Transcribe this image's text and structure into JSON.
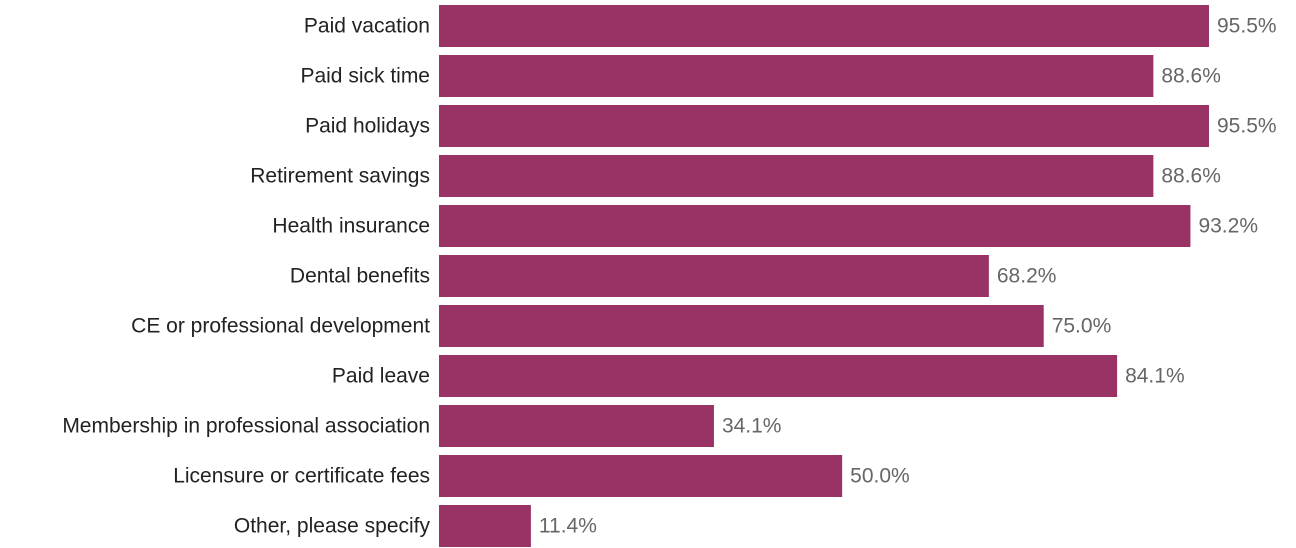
{
  "chart_data": {
    "type": "bar",
    "orientation": "horizontal",
    "categories": [
      "Paid vacation",
      "Paid sick time",
      "Paid holidays",
      "Retirement savings",
      "Health insurance",
      "Dental benefits",
      "CE or professional development",
      "Paid leave",
      "Membership in professional association",
      "Licensure or certificate fees",
      "Other, please specify"
    ],
    "values": [
      95.5,
      88.6,
      95.5,
      88.6,
      93.2,
      68.2,
      75.0,
      84.1,
      34.1,
      50.0,
      11.4
    ],
    "value_labels": [
      "95.5%",
      "88.6%",
      "95.5%",
      "88.6%",
      "93.2%",
      "68.2%",
      "75.0%",
      "84.1%",
      "34.1%",
      "50.0%",
      "11.4%"
    ],
    "xlim": [
      0,
      100
    ],
    "grid": false,
    "legend": "none",
    "title": "",
    "xlabel": "",
    "ylabel": "",
    "bar_color": "#993366"
  }
}
